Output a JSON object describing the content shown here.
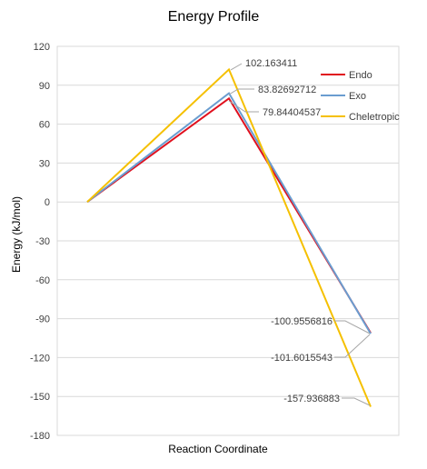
{
  "chart_data": {
    "type": "line",
    "title": "Energy Profile",
    "xlabel": "Reaction Coordinate",
    "ylabel": "Energy (kJ/mol)",
    "ylim": [
      -180,
      120
    ],
    "yticks": [
      120,
      90,
      60,
      30,
      0,
      -30,
      -60,
      -90,
      -120,
      -150,
      -180
    ],
    "ytick_labels": [
      "120",
      "90",
      "60",
      "30",
      "0",
      "-30",
      "-60",
      "-90",
      "-120",
      "-150",
      "-180"
    ],
    "grid": true,
    "legend_position": "top-right",
    "x": [
      1,
      2,
      3
    ],
    "series": [
      {
        "name": "Endo",
        "color": "#e0101e",
        "values": [
          0,
          79.84404537,
          -100.9556816
        ]
      },
      {
        "name": "Exo",
        "color": "#6a9dd0",
        "values": [
          0,
          83.82692712,
          -101.6015543
        ]
      },
      {
        "name": "Cheletropic",
        "color": "#f5c000",
        "values": [
          0,
          102.163411,
          -157.936883
        ]
      }
    ],
    "annotations": [
      {
        "text": "102.163411",
        "series": 2,
        "point": 1
      },
      {
        "text": "83.82692712",
        "series": 1,
        "point": 1
      },
      {
        "text": "79.84404537",
        "series": 0,
        "point": 1
      },
      {
        "text": "-100.9556816",
        "series": 0,
        "point": 2
      },
      {
        "text": "-101.6015543",
        "series": 1,
        "point": 2
      },
      {
        "text": "-157.936883",
        "series": 2,
        "point": 2
      }
    ]
  }
}
